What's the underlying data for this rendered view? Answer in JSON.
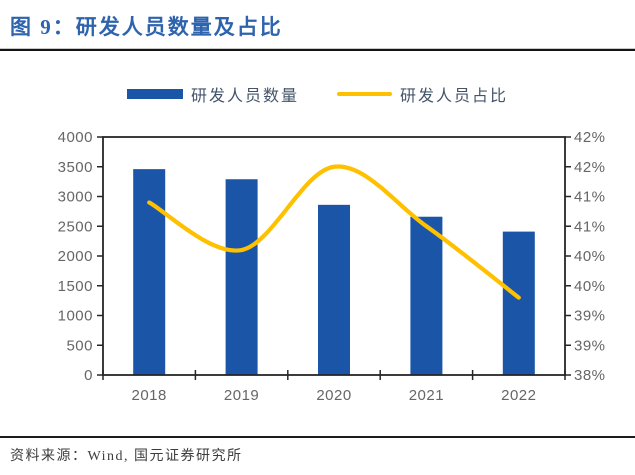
{
  "header": {
    "title": "图 9：研发人员数量及占比"
  },
  "palette": {
    "bar_blue": "#1A55A8",
    "line_yellow": "#FFC000",
    "title_blue": "#2E63AE",
    "axis_text_gray": "#666666",
    "frame_black": "#262626",
    "legend_text": "#44546A"
  },
  "chart_data": {
    "type": "bar+line combo",
    "categories": [
      "2018",
      "2019",
      "2020",
      "2021",
      "2022"
    ],
    "series": [
      {
        "name": "研发人员数量",
        "type": "bar",
        "axis": "left",
        "color": "#1A55A8",
        "values": [
          3460,
          3290,
          2860,
          2660,
          2410
        ]
      },
      {
        "name": "研发人员占比",
        "type": "line",
        "axis": "right",
        "color": "#FFC000",
        "smooth": true,
        "values": [
          40.9,
          40.1,
          41.5,
          40.5,
          39.3
        ]
      }
    ],
    "left_axis": {
      "min": 0,
      "max": 4000,
      "step": 500,
      "tick_labels_top_down": [
        "4000",
        "3500",
        "3000",
        "2500",
        "2000",
        "1500",
        "1000",
        "500",
        "0"
      ]
    },
    "right_axis": {
      "min": 38,
      "max": 42,
      "step": 0.5,
      "tick_labels_top_down": [
        "42%",
        "42%",
        "41%",
        "41%",
        "40%",
        "40%",
        "39%",
        "39%",
        "38%"
      ]
    },
    "grid": false,
    "legend_position": "top-center",
    "title": "研发人员数量及占比"
  },
  "footer": {
    "source": "资料来源：Wind, 国元证券研究所"
  }
}
